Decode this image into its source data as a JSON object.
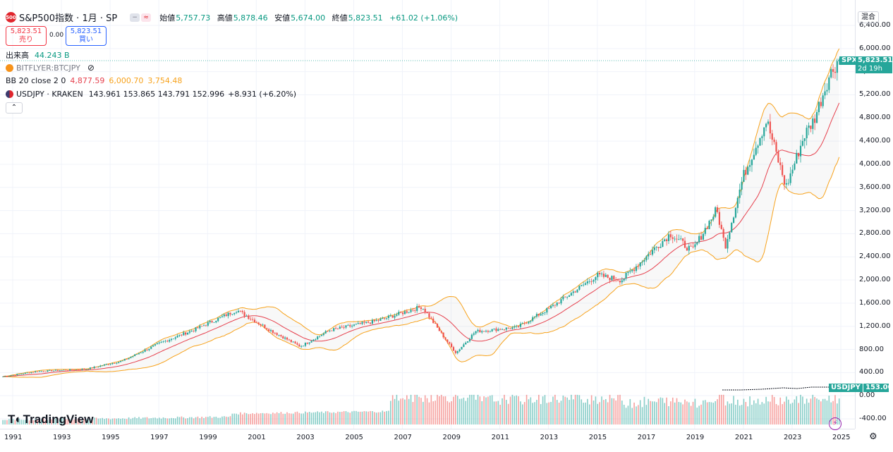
{
  "header": {
    "symbol_badge": "500",
    "title": "S&P500指数 · 1月 · SP",
    "ohlc": [
      {
        "label": "始値",
        "value": "5,757.73"
      },
      {
        "label": "高値",
        "value": "5,878.46"
      },
      {
        "label": "安値",
        "value": "5,674.00"
      },
      {
        "label": "終値",
        "value": "5,823.51"
      }
    ],
    "change": "+61.02 (+1.06%)"
  },
  "trade": {
    "sell_price": "5,823.51",
    "sell_label": "売り",
    "spread": "0.00",
    "buy_price": "5,823.51",
    "buy_label": "買い"
  },
  "indicators": {
    "volume_label": "出来高",
    "volume_value": "44.243 B",
    "btc_symbol": "BITFLYER:BTCJPY",
    "bb_label": "BB 20 close 2 0",
    "bb_basis": "4,877.59",
    "bb_upper": "6,000.70",
    "bb_lower": "3,754.48",
    "usdjpy_label": "USDJPY · KRAKEN",
    "usdjpy_values": "143.961 153.865 143.791 152.996",
    "usdjpy_change": "+8.931 (+6.20%)"
  },
  "price_axis": {
    "mode": "混合",
    "labels": [
      "6,400.00",
      "6,000.00",
      "5,600.00",
      "5,200.00",
      "4,800.00",
      "4,400.00",
      "4,000.00",
      "3,600.00",
      "3,200.00",
      "2,800.00",
      "2,400.00",
      "2,000.00",
      "1,600.00",
      "1,200.00",
      "800.00",
      "400.00",
      "0.00",
      "-400.00"
    ]
  },
  "tags": {
    "spx_symbol": "SPX",
    "spx_price": "5,823.51",
    "spx_countdown": "2d 19h",
    "usdjpy_symbol": "USDJPY",
    "usdjpy_price": "153.00"
  },
  "time_axis": {
    "labels": [
      "1991",
      "1993",
      "1995",
      "1997",
      "1999",
      "2001",
      "2003",
      "2005",
      "2007",
      "2009",
      "2011",
      "2013",
      "2015",
      "2017",
      "2019",
      "2021",
      "2023",
      "2025"
    ]
  },
  "branding": {
    "logo_text": "TradingView"
  },
  "colors": {
    "up": "#26a69a",
    "down": "#ef5350",
    "bb_band": "#f7a21b",
    "bb_basis": "#e6404d",
    "accent": "#2962ff"
  },
  "chart_data": {
    "type": "candlestick",
    "title": "S&P500指数 · 1月 · SP",
    "y_range": [
      -400,
      6400
    ],
    "x_range": [
      "1990-07",
      "2025-06"
    ],
    "series": [
      {
        "name": "S&P500",
        "anchors": [
          {
            "x": 1990.6,
            "y": 330
          },
          {
            "x": 1992.0,
            "y": 420
          },
          {
            "x": 1994.0,
            "y": 460
          },
          {
            "x": 1995.5,
            "y": 600
          },
          {
            "x": 1997.0,
            "y": 900
          },
          {
            "x": 1998.5,
            "y": 1150
          },
          {
            "x": 2000.2,
            "y": 1480
          },
          {
            "x": 2001.5,
            "y": 1150
          },
          {
            "x": 2002.8,
            "y": 850
          },
          {
            "x": 2004.0,
            "y": 1130
          },
          {
            "x": 2006.0,
            "y": 1300
          },
          {
            "x": 2007.8,
            "y": 1540
          },
          {
            "x": 2008.9,
            "y": 900
          },
          {
            "x": 2009.2,
            "y": 740
          },
          {
            "x": 2010.0,
            "y": 1110
          },
          {
            "x": 2011.7,
            "y": 1180
          },
          {
            "x": 2013.0,
            "y": 1500
          },
          {
            "x": 2015.0,
            "y": 2080
          },
          {
            "x": 2016.0,
            "y": 2000
          },
          {
            "x": 2018.0,
            "y": 2800
          },
          {
            "x": 2018.9,
            "y": 2500
          },
          {
            "x": 2019.9,
            "y": 3220
          },
          {
            "x": 2020.25,
            "y": 2580
          },
          {
            "x": 2021.0,
            "y": 3800
          },
          {
            "x": 2021.95,
            "y": 4760
          },
          {
            "x": 2022.75,
            "y": 3600
          },
          {
            "x": 2023.5,
            "y": 4500
          },
          {
            "x": 2023.9,
            "y": 4770
          },
          {
            "x": 2024.5,
            "y": 5500
          },
          {
            "x": 2024.9,
            "y": 5823
          }
        ]
      },
      {
        "name": "USDJPY",
        "last": 153.0
      }
    ]
  }
}
